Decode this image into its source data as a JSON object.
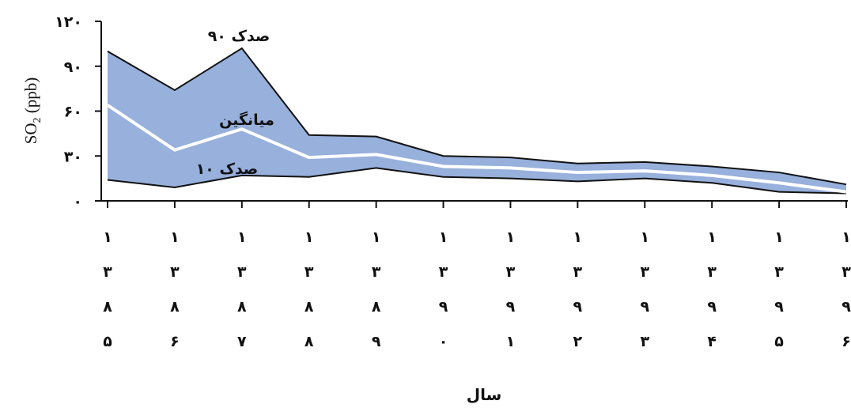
{
  "chart_data": {
    "type": "area",
    "categories": [
      "۱۳۸۵",
      "۱۳۸۶",
      "۱۳۸۷",
      "۱۳۸۸",
      "۱۳۸۹",
      "۱۳۹۰",
      "۱۳۹۱",
      "۱۳۹۲",
      "۱۳۹۳",
      "۱۳۹۴",
      "۱۳۹۵",
      "۱۳۹۶"
    ],
    "category_digits": [
      [
        "۱",
        "۳",
        "۸",
        "۵"
      ],
      [
        "۱",
        "۳",
        "۸",
        "۶"
      ],
      [
        "۱",
        "۳",
        "۸",
        "۷"
      ],
      [
        "۱",
        "۳",
        "۸",
        "۸"
      ],
      [
        "۱",
        "۳",
        "۸",
        "۹"
      ],
      [
        "۱",
        "۳",
        "۹",
        "۰"
      ],
      [
        "۱",
        "۳",
        "۹",
        "۱"
      ],
      [
        "۱",
        "۳",
        "۹",
        "۲"
      ],
      [
        "۱",
        "۳",
        "۹",
        "۳"
      ],
      [
        "۱",
        "۳",
        "۹",
        "۴"
      ],
      [
        "۱",
        "۳",
        "۹",
        "۵"
      ],
      [
        "۱",
        "۳",
        "۹",
        "۶"
      ]
    ],
    "series": [
      {
        "name": "صدک ۹۰",
        "values": [
          100,
          74,
          102,
          44,
          43,
          30,
          29,
          25,
          26,
          23,
          19,
          11
        ]
      },
      {
        "name": "میانگین",
        "values": [
          64,
          34,
          48,
          29,
          31,
          23,
          22,
          19,
          20,
          17,
          12,
          6
        ]
      },
      {
        "name": "صدک ۱۰",
        "values": [
          14,
          9,
          17,
          16,
          22,
          16,
          15,
          13,
          15,
          12,
          6,
          5
        ]
      }
    ],
    "xlabel": "سال",
    "ylabel": "SO",
    "ylabel_subscript": "2",
    "ylabel_unit": " (ppb)",
    "ylim": [
      0,
      120
    ],
    "yticks": [
      0,
      30,
      60,
      90,
      120
    ],
    "ytick_labels": [
      "۰",
      "۳۰",
      "۶۰",
      "۹۰",
      "۱۲۰"
    ],
    "band_color": "#97B0DC",
    "mean_line_color": "#ffffff",
    "grid": false,
    "legend": "none"
  }
}
